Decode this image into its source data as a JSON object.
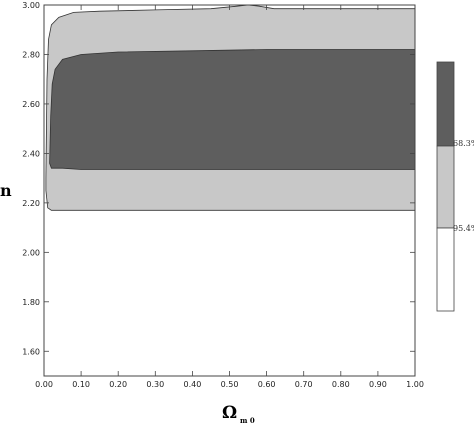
{
  "chart_data": {
    "type": "area",
    "title": "",
    "xlabel": "Ω",
    "xlabel_sub": "m 0",
    "ylabel": "n",
    "xlim": [
      0.0,
      1.0
    ],
    "ylim": [
      1.5,
      3.0
    ],
    "x_ticks": [
      "0.00",
      "0.10",
      "0.20",
      "0.30",
      "0.40",
      "0.50",
      "0.60",
      "0.70",
      "0.80",
      "0.90",
      "1.00"
    ],
    "y_ticks": [
      "1.60",
      "1.80",
      "2.00",
      "2.20",
      "2.40",
      "2.60",
      "2.80",
      "3.00"
    ],
    "grid": false,
    "legend_position": "right",
    "legend": [
      {
        "label": "68.3%",
        "color": "#5e5e5e"
      },
      {
        "label": "95.4%",
        "color": "#c8c8c8"
      }
    ],
    "regions": [
      {
        "name": "95.4%",
        "color": "#c8c8c8",
        "upper": [
          [
            0.005,
            2.3
          ],
          [
            0.008,
            2.7
          ],
          [
            0.012,
            2.86
          ],
          [
            0.02,
            2.92
          ],
          [
            0.04,
            2.95
          ],
          [
            0.08,
            2.97
          ],
          [
            0.15,
            2.975
          ],
          [
            0.3,
            2.98
          ],
          [
            0.45,
            2.985
          ],
          [
            0.52,
            2.995
          ],
          [
            0.55,
            3.0
          ],
          [
            0.58,
            2.995
          ],
          [
            0.62,
            2.985
          ],
          [
            0.8,
            2.985
          ],
          [
            1.0,
            2.985
          ]
        ],
        "lower": [
          [
            0.005,
            2.25
          ],
          [
            0.01,
            2.18
          ],
          [
            0.02,
            2.17
          ],
          [
            0.1,
            2.17
          ],
          [
            0.4,
            2.17
          ],
          [
            0.7,
            2.17
          ],
          [
            1.0,
            2.17
          ]
        ]
      },
      {
        "name": "68.3%",
        "color": "#5e5e5e",
        "upper": [
          [
            0.015,
            2.36
          ],
          [
            0.018,
            2.55
          ],
          [
            0.022,
            2.68
          ],
          [
            0.03,
            2.74
          ],
          [
            0.05,
            2.78
          ],
          [
            0.1,
            2.8
          ],
          [
            0.2,
            2.81
          ],
          [
            0.4,
            2.815
          ],
          [
            0.6,
            2.82
          ],
          [
            0.8,
            2.82
          ],
          [
            1.0,
            2.82
          ]
        ],
        "lower": [
          [
            0.015,
            2.36
          ],
          [
            0.02,
            2.34
          ],
          [
            0.05,
            2.34
          ],
          [
            0.1,
            2.335
          ],
          [
            0.3,
            2.335
          ],
          [
            0.6,
            2.335
          ],
          [
            1.0,
            2.335
          ]
        ]
      }
    ]
  }
}
